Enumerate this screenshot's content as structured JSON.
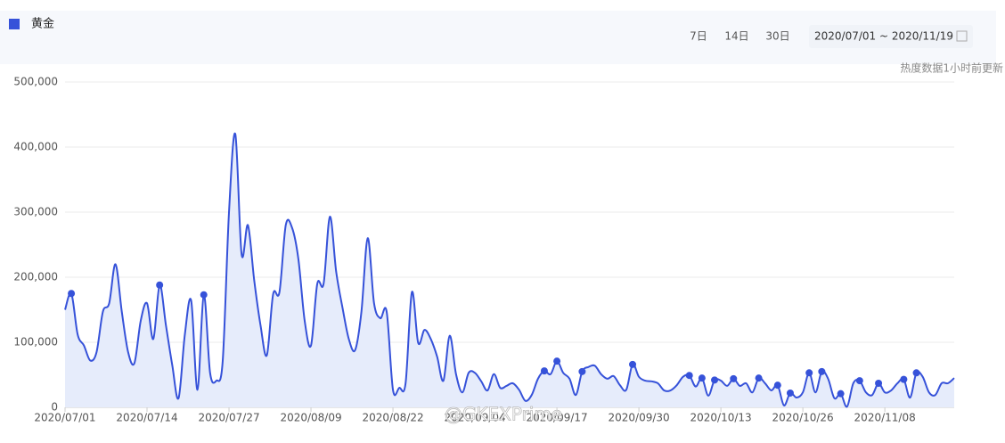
{
  "chart_data": {
    "type": "line",
    "legend_label": "黄金",
    "controls": [
      "7日",
      "14日",
      "30日"
    ],
    "date_range": "2020/07/01 ~ 2020/11/19",
    "update_note": "热度数据1小时前更新",
    "watermark": "@GKEXPrime",
    "categories": [
      "2020/07/01",
      null,
      null,
      null,
      null,
      null,
      null,
      null,
      null,
      null,
      null,
      null,
      null,
      "2020/07/14",
      null,
      null,
      null,
      null,
      null,
      null,
      null,
      null,
      null,
      null,
      null,
      null,
      "2020/07/27",
      null,
      null,
      null,
      null,
      null,
      null,
      null,
      null,
      null,
      null,
      null,
      null,
      "2020/08/09",
      null,
      null,
      null,
      null,
      null,
      null,
      null,
      null,
      null,
      null,
      null,
      null,
      "2020/08/22",
      null,
      null,
      null,
      null,
      null,
      null,
      null,
      null,
      null,
      null,
      null,
      null,
      "2020/09/04",
      null,
      null,
      null,
      null,
      null,
      null,
      null,
      null,
      null,
      null,
      null,
      null,
      "2020/09/17",
      null,
      null,
      null,
      null,
      null,
      null,
      null,
      null,
      null,
      null,
      null,
      null,
      "2020/09/30",
      null,
      null,
      null,
      null,
      null,
      null,
      null,
      null,
      null,
      null,
      null,
      null,
      "2020/10/13",
      null,
      null,
      null,
      null,
      null,
      null,
      null,
      null,
      null,
      null,
      null,
      null,
      "2020/10/26",
      null,
      null,
      null,
      null,
      null,
      null,
      null,
      null,
      null,
      null,
      null,
      null,
      "2020/11/08",
      null,
      null,
      null,
      null,
      null,
      null,
      null,
      null,
      null,
      null,
      null
    ],
    "series": [
      {
        "name": "黄金",
        "color": "#3652d9",
        "fill": "#e6ecfb",
        "values": [
          150000,
          175000,
          112000,
          95000,
          72000,
          85000,
          147000,
          160000,
          220000,
          147000,
          85000,
          68000,
          133000,
          160000,
          105000,
          188000,
          126000,
          65000,
          14000,
          112000,
          164000,
          27000,
          173000,
          53000,
          41000,
          71000,
          300000,
          420000,
          235000,
          280000,
          195000,
          126000,
          80000,
          174000,
          177000,
          280000,
          276000,
          228000,
          133000,
          95000,
          190000,
          190000,
          293000,
          208000,
          153000,
          105000,
          88000,
          147000,
          260000,
          160000,
          137000,
          147000,
          27000,
          30000,
          37000,
          177000,
          99000,
          119000,
          105000,
          78000,
          41000,
          110000,
          51000,
          23000,
          53000,
          53000,
          40000,
          26000,
          51000,
          30000,
          33000,
          37000,
          27000,
          10000,
          19000,
          44000,
          56000,
          51000,
          71000,
          53000,
          44000,
          19000,
          55000,
          62000,
          64000,
          51000,
          44000,
          48000,
          34000,
          27000,
          66000,
          47000,
          41000,
          40000,
          37000,
          26000,
          26000,
          34000,
          47000,
          49000,
          32000,
          45000,
          18000,
          42000,
          41000,
          33000,
          44000,
          33000,
          37000,
          23000,
          45000,
          37000,
          26000,
          34000,
          3000,
          22000,
          15000,
          23000,
          53000,
          23000,
          55000,
          44000,
          14000,
          21000,
          1000,
          37000,
          41000,
          23000,
          19000,
          37000,
          23000,
          26000,
          37000,
          43000,
          15000,
          53000,
          47000,
          23000,
          19000,
          37000,
          37000,
          45000
        ],
        "marker_indices": [
          1,
          15,
          22,
          76,
          78,
          82,
          90,
          99,
          101,
          103,
          106,
          110,
          113,
          115,
          118,
          120,
          123,
          126,
          129,
          133,
          135
        ]
      }
    ],
    "ylim": [
      0,
      500000
    ],
    "yticks": [
      0,
      {
        "value": 100000,
        "label": "100,000"
      },
      {
        "value": 200000,
        "label": "200,000"
      },
      {
        "value": 300000,
        "label": "300,000"
      },
      {
        "value": 400000,
        "label": "400,000"
      },
      {
        "value": 500000,
        "label": "500,000"
      }
    ],
    "grid": true
  }
}
